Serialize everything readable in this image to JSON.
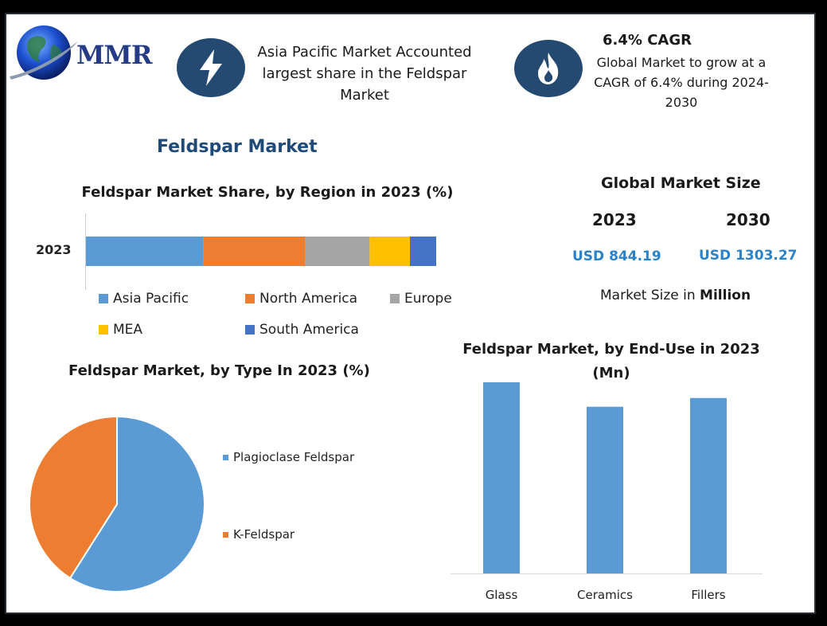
{
  "logo": {
    "text": "MMR"
  },
  "highlights": {
    "region_text": "Asia Pacific Market Accounted largest share in the Feldspar Market",
    "region_icon": "lightning-bolt-icon",
    "cagr_title": "6.4% CAGR",
    "cagr_text": "Global Market to grow at a CAGR of 6.4% during 2024-2030",
    "cagr_icon": "flame-icon"
  },
  "page_title": "Feldspar Market",
  "market_size": {
    "title": "Global Market Size",
    "year_a": "2023",
    "year_b": "2030",
    "value_a": "USD 844.19",
    "value_b": "USD 1303.27",
    "unit_prefix": "Market Size in",
    "unit_bold": "Million"
  },
  "colors": {
    "asia_pacific": "#5b9bd5",
    "north_america": "#ed7d31",
    "europe": "#a5a5a5",
    "mea": "#ffc000",
    "south_america": "#4472c4",
    "icon_bg": "#244a72"
  },
  "chart_data": [
    {
      "type": "bar",
      "orientation": "horizontal-stacked",
      "title": "Feldspar Market Share, by Region in 2023 (%)",
      "categories": [
        "2023"
      ],
      "series": [
        {
          "name": "Asia Pacific",
          "values": [
            33.5
          ],
          "color": "#5b9bd5"
        },
        {
          "name": "North America",
          "values": [
            29
          ],
          "color": "#ed7d31"
        },
        {
          "name": "Europe",
          "values": [
            18.5
          ],
          "color": "#a5a5a5"
        },
        {
          "name": "MEA",
          "values": [
            11.5
          ],
          "color": "#ffc000"
        },
        {
          "name": "South America",
          "values": [
            7.5
          ],
          "color": "#4472c4"
        }
      ],
      "xlim": [
        0,
        100
      ],
      "legend": "bottom"
    },
    {
      "type": "pie",
      "title": "Feldspar Market, by Type In 2023 (%)",
      "labels": [
        "Plagioclase Feldspar",
        "K-Feldspar"
      ],
      "values": [
        59,
        41
      ],
      "colors": [
        "#5b9bd5",
        "#ed7d31"
      ],
      "legend": "right"
    },
    {
      "type": "bar",
      "title": "Feldspar Market, by  End-Use in 2023 (Mn)",
      "categories": [
        "Glass",
        "Ceramics",
        "Fillers"
      ],
      "values": [
        340,
        285,
        300
      ],
      "ylim": [
        0,
        350
      ],
      "color": "#5b9bd5",
      "grid": false
    }
  ]
}
